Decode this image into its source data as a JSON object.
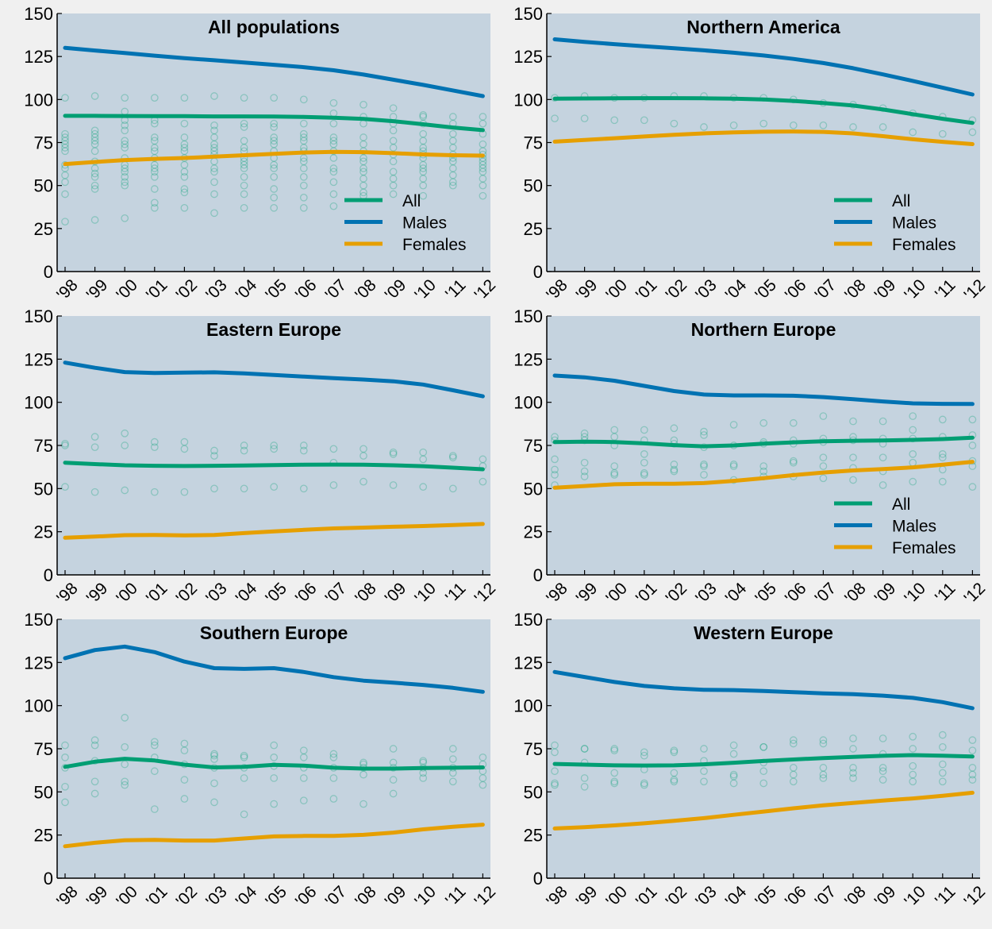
{
  "colors": {
    "figure_background": "#f0f0f0",
    "plot_background": "#c5d3df",
    "axis": "#000000",
    "all": "#009e73",
    "males": "#0072b2",
    "females": "#e69f00",
    "markers": "#009e73"
  },
  "chart_data": [
    {
      "type": "line",
      "title": "All populations",
      "x": [
        "'98",
        "'99",
        "'00",
        "'01",
        "'02",
        "'03",
        "'04",
        "'05",
        "'06",
        "'07",
        "'08",
        "'09",
        "'10",
        "'11",
        "'12"
      ],
      "ylim": [
        0,
        150
      ],
      "yticks": [
        0,
        25,
        50,
        75,
        100,
        125,
        150
      ],
      "grid": false,
      "legend": "lower-right",
      "series": [
        {
          "name": "All",
          "color_key": "all",
          "values": [
            90.5,
            90.5,
            90.4,
            90.3,
            90.3,
            90.2,
            90.2,
            90.1,
            89.9,
            89.4,
            88.7,
            87.4,
            85.6,
            83.7,
            82.2
          ]
        },
        {
          "name": "Males",
          "color_key": "males",
          "values": [
            130,
            128.5,
            127,
            125.5,
            124,
            122.8,
            121.5,
            120.2,
            118.8,
            117,
            114.5,
            111.5,
            108.5,
            105.3,
            102
          ]
        },
        {
          "name": "Females",
          "color_key": "females",
          "values": [
            62.5,
            63.7,
            64.8,
            65.5,
            66,
            66.8,
            67.6,
            68.4,
            69.2,
            69.6,
            69.4,
            68.8,
            68.1,
            67.6,
            67.4
          ]
        }
      ],
      "points": [
        [
          29,
          45,
          52,
          56,
          60,
          62,
          70,
          72,
          74,
          76,
          78,
          80,
          101
        ],
        [
          30,
          48,
          50,
          55,
          57,
          60,
          64,
          70,
          74,
          76,
          78,
          80,
          82,
          102
        ],
        [
          31,
          50,
          52,
          55,
          58,
          60,
          62,
          66,
          72,
          74,
          76,
          82,
          85,
          88,
          93,
          101
        ],
        [
          37,
          40,
          48,
          55,
          58,
          60,
          62,
          66,
          70,
          72,
          76,
          78,
          86,
          88,
          101
        ],
        [
          37,
          46,
          48,
          55,
          58,
          62,
          66,
          70,
          72,
          74,
          78,
          86,
          101
        ],
        [
          34,
          45,
          52,
          58,
          60,
          64,
          68,
          70,
          72,
          74,
          78,
          82,
          85,
          102
        ],
        [
          37,
          45,
          50,
          55,
          60,
          62,
          64,
          66,
          70,
          72,
          76,
          84,
          86,
          101
        ],
        [
          37,
          43,
          48,
          55,
          60,
          62,
          66,
          70,
          74,
          76,
          78,
          84,
          86,
          101
        ],
        [
          37,
          43,
          50,
          55,
          60,
          64,
          66,
          70,
          72,
          76,
          78,
          80,
          86,
          100
        ],
        [
          38,
          45,
          52,
          58,
          60,
          66,
          70,
          74,
          76,
          78,
          86,
          92,
          98
        ],
        [
          44,
          46,
          50,
          54,
          58,
          60,
          64,
          66,
          70,
          74,
          78,
          86,
          90,
          97
        ],
        [
          45,
          50,
          54,
          58,
          64,
          68,
          72,
          76,
          82,
          86,
          90,
          95
        ],
        [
          44,
          50,
          54,
          58,
          60,
          62,
          66,
          68,
          70,
          72,
          76,
          80,
          86,
          90,
          91
        ],
        [
          50,
          52,
          56,
          60,
          64,
          66,
          68,
          72,
          76,
          80,
          86,
          90
        ],
        [
          44,
          50,
          54,
          58,
          60,
          62,
          64,
          66,
          68,
          70,
          74,
          80,
          86,
          90
        ]
      ]
    },
    {
      "type": "line",
      "title": "Northern America",
      "x": [
        "'98",
        "'99",
        "'00",
        "'01",
        "'02",
        "'03",
        "'04",
        "'05",
        "'06",
        "'07",
        "'08",
        "'09",
        "'10",
        "'11",
        "'12"
      ],
      "ylim": [
        0,
        150
      ],
      "yticks": [
        0,
        25,
        50,
        75,
        100,
        125,
        150
      ],
      "grid": false,
      "legend": "lower-right",
      "series": [
        {
          "name": "All",
          "color_key": "all",
          "values": [
            100.5,
            100.6,
            100.7,
            100.8,
            100.8,
            100.7,
            100.5,
            100,
            99.2,
            98,
            96.5,
            94.2,
            91.5,
            88.8,
            86.4
          ]
        },
        {
          "name": "Males",
          "color_key": "males",
          "values": [
            135,
            133.5,
            132.2,
            131,
            129.8,
            128.6,
            127.2,
            125.6,
            123.6,
            121.2,
            118.2,
            114.6,
            110.8,
            106.9,
            102.9
          ]
        },
        {
          "name": "Females",
          "color_key": "females",
          "values": [
            75.5,
            76.5,
            77.5,
            78.5,
            79.5,
            80.3,
            80.9,
            81.3,
            81.4,
            81.2,
            80.3,
            78.7,
            76.9,
            75.4,
            74.1
          ]
        }
      ],
      "points": [
        [
          89,
          101
        ],
        [
          89,
          102
        ],
        [
          88,
          101
        ],
        [
          88,
          101
        ],
        [
          86,
          102
        ],
        [
          84,
          102
        ],
        [
          85,
          101
        ],
        [
          86,
          101
        ],
        [
          85,
          100
        ],
        [
          85,
          98
        ],
        [
          84,
          97
        ],
        [
          84,
          95
        ],
        [
          81,
          92
        ],
        [
          80,
          90
        ],
        [
          81,
          88
        ]
      ]
    },
    {
      "type": "line",
      "title": "Eastern Europe",
      "x": [
        "'98",
        "'99",
        "'00",
        "'01",
        "'02",
        "'03",
        "'04",
        "'05",
        "'06",
        "'07",
        "'08",
        "'09",
        "'10",
        "'11",
        "'12"
      ],
      "ylim": [
        0,
        150
      ],
      "yticks": [
        0,
        25,
        50,
        75,
        100,
        125,
        150
      ],
      "grid": false,
      "legend": "",
      "series": [
        {
          "name": "All",
          "color_key": "all",
          "values": [
            65,
            64.2,
            63.5,
            63.2,
            63.1,
            63.2,
            63.4,
            63.6,
            63.8,
            63.9,
            63.8,
            63.5,
            63,
            62.1,
            61.2
          ]
        },
        {
          "name": "Males",
          "color_key": "males",
          "values": [
            123,
            120,
            117.5,
            117,
            117.2,
            117.4,
            116.8,
            115.8,
            114.9,
            114,
            113.2,
            112.2,
            110.3,
            107,
            103.5
          ]
        },
        {
          "name": "Females",
          "color_key": "females",
          "values": [
            21.5,
            22.2,
            23,
            23.1,
            22.9,
            23.1,
            24.2,
            25.2,
            26.1,
            26.9,
            27.4,
            27.9,
            28.3,
            28.9,
            29.5
          ]
        }
      ],
      "points": [
        [
          51,
          75,
          76
        ],
        [
          48,
          74,
          80
        ],
        [
          49,
          75,
          82
        ],
        [
          48,
          74,
          77
        ],
        [
          48,
          73,
          77
        ],
        [
          50,
          69,
          72
        ],
        [
          50,
          72,
          75
        ],
        [
          51,
          73,
          75
        ],
        [
          50,
          72,
          75
        ],
        [
          52,
          65,
          73
        ],
        [
          54,
          69,
          73
        ],
        [
          52,
          70,
          71
        ],
        [
          51,
          67,
          71
        ],
        [
          50,
          68,
          69
        ],
        [
          54,
          63,
          67
        ]
      ]
    },
    {
      "type": "line",
      "title": "Northern Europe",
      "x": [
        "'98",
        "'99",
        "'00",
        "'01",
        "'02",
        "'03",
        "'04",
        "'05",
        "'06",
        "'07",
        "'08",
        "'09",
        "'10",
        "'11",
        "'12"
      ],
      "ylim": [
        0,
        150
      ],
      "yticks": [
        0,
        25,
        50,
        75,
        100,
        125,
        150
      ],
      "grid": false,
      "legend": "lower-right",
      "series": [
        {
          "name": "All",
          "color_key": "all",
          "values": [
            77,
            77.2,
            77,
            76.2,
            75.2,
            74.5,
            75,
            76,
            76.8,
            77.4,
            77.7,
            77.9,
            78.2,
            78.7,
            79.5
          ]
        },
        {
          "name": "Males",
          "color_key": "males",
          "values": [
            115.5,
            114.5,
            112.5,
            109.5,
            106.5,
            104.5,
            104,
            104,
            103.8,
            103,
            101.8,
            100.5,
            99.4,
            99.1,
            99
          ]
        },
        {
          "name": "Females",
          "color_key": "females",
          "values": [
            50.5,
            51.5,
            52.5,
            52.8,
            52.8,
            53.2,
            54.5,
            56,
            57.8,
            59.3,
            60.5,
            61.3,
            62.3,
            63.8,
            65.5
          ]
        }
      ],
      "points": [
        [
          52,
          58,
          61,
          67,
          78,
          80
        ],
        [
          57,
          60,
          65,
          78,
          80,
          82
        ],
        [
          58,
          59,
          63,
          75,
          80,
          84
        ],
        [
          58,
          59,
          65,
          70,
          78,
          84
        ],
        [
          60,
          61,
          64,
          76,
          78,
          85
        ],
        [
          58,
          63,
          64,
          74,
          81,
          83
        ],
        [
          55,
          63,
          64,
          75,
          87
        ],
        [
          57,
          60,
          63,
          76,
          77,
          88
        ],
        [
          57,
          65,
          66,
          76,
          78,
          88
        ],
        [
          56,
          63,
          68,
          77,
          79,
          92
        ],
        [
          55,
          62,
          68,
          78,
          80,
          89
        ],
        [
          52,
          60,
          68,
          76,
          79,
          89
        ],
        [
          54,
          65,
          70,
          79,
          84,
          92
        ],
        [
          54,
          61,
          68,
          70,
          80,
          90
        ],
        [
          51,
          63,
          66,
          75,
          81,
          90
        ]
      ]
    },
    {
      "type": "line",
      "title": "Southern Europe",
      "x": [
        "'98",
        "'99",
        "'00",
        "'01",
        "'02",
        "'03",
        "'04",
        "'05",
        "'06",
        "'07",
        "'08",
        "'09",
        "'10",
        "'11",
        "'12"
      ],
      "ylim": [
        0,
        150
      ],
      "yticks": [
        0,
        25,
        50,
        75,
        100,
        125,
        150
      ],
      "grid": false,
      "legend": "",
      "series": [
        {
          "name": "All",
          "color_key": "all",
          "values": [
            64.5,
            67.5,
            69.2,
            68.2,
            65.8,
            64.2,
            64.5,
            65.7,
            65.2,
            64,
            63.5,
            63.5,
            63.8,
            64,
            64.2
          ]
        },
        {
          "name": "Males",
          "color_key": "males",
          "values": [
            127.5,
            132.2,
            134.2,
            131,
            125.5,
            121.7,
            121.3,
            121.7,
            119.5,
            116.5,
            114.5,
            113.3,
            112,
            110.3,
            108
          ]
        },
        {
          "name": "Females",
          "color_key": "females",
          "values": [
            18.5,
            20.5,
            22,
            22.2,
            21.8,
            21.8,
            23,
            24.2,
            24.5,
            24.5,
            25.1,
            26.4,
            28.3,
            29.8,
            31
          ]
        }
      ],
      "points": [
        [
          44,
          53,
          64,
          70,
          77
        ],
        [
          49,
          56,
          68,
          77,
          80
        ],
        [
          54,
          56,
          66,
          76,
          93
        ],
        [
          40,
          62,
          70,
          77,
          79
        ],
        [
          46,
          57,
          66,
          74,
          78
        ],
        [
          44,
          55,
          64,
          69,
          71,
          72
        ],
        [
          37,
          58,
          64,
          70,
          71
        ],
        [
          43,
          58,
          65,
          70,
          77
        ],
        [
          45,
          58,
          64,
          70,
          74
        ],
        [
          46,
          58,
          64,
          70,
          72
        ],
        [
          43,
          60,
          64,
          66,
          67
        ],
        [
          49,
          57,
          64,
          67,
          75
        ],
        [
          58,
          61,
          64,
          67,
          68
        ],
        [
          56,
          61,
          64,
          69,
          75
        ],
        [
          54,
          58,
          62,
          66,
          70
        ]
      ]
    },
    {
      "type": "line",
      "title": "Western Europe",
      "x": [
        "'98",
        "'99",
        "'00",
        "'01",
        "'02",
        "'03",
        "'04",
        "'05",
        "'06",
        "'07",
        "'08",
        "'09",
        "'10",
        "'11",
        "'12"
      ],
      "ylim": [
        0,
        150
      ],
      "yticks": [
        0,
        25,
        50,
        75,
        100,
        125,
        150
      ],
      "grid": false,
      "legend": "",
      "series": [
        {
          "name": "All",
          "color_key": "all",
          "values": [
            66.2,
            65.8,
            65.4,
            65.3,
            65.4,
            66,
            66.9,
            67.9,
            68.8,
            69.6,
            70.3,
            70.9,
            71.3,
            71,
            70.5
          ]
        },
        {
          "name": "Males",
          "color_key": "males",
          "values": [
            119.5,
            116.6,
            113.7,
            111.4,
            110,
            109.2,
            109,
            108.5,
            107.8,
            107.1,
            106.6,
            105.8,
            104.5,
            102,
            98.5
          ]
        },
        {
          "name": "Females",
          "color_key": "females",
          "values": [
            28.8,
            29.6,
            30.6,
            31.8,
            33.2,
            34.8,
            36.7,
            38.6,
            40.5,
            42.2,
            43.6,
            45,
            46.2,
            47.7,
            49.5
          ]
        }
      ],
      "points": [
        [
          54,
          55,
          62,
          73,
          77
        ],
        [
          53,
          58,
          67,
          75,
          75
        ],
        [
          55,
          56,
          61,
          74,
          75
        ],
        [
          54,
          55,
          63,
          71,
          73
        ],
        [
          56,
          57,
          61,
          73,
          74
        ],
        [
          56,
          62,
          68,
          75
        ],
        [
          55,
          59,
          60,
          72,
          77
        ],
        [
          55,
          62,
          67,
          76,
          76
        ],
        [
          56,
          60,
          64,
          78,
          80
        ],
        [
          58,
          60,
          64,
          78,
          80
        ],
        [
          58,
          61,
          64,
          75,
          81
        ],
        [
          57,
          62,
          64,
          72,
          81
        ],
        [
          56,
          60,
          65,
          75,
          82
        ],
        [
          56,
          61,
          66,
          76,
          83
        ],
        [
          57,
          60,
          64,
          74,
          80
        ]
      ]
    }
  ]
}
